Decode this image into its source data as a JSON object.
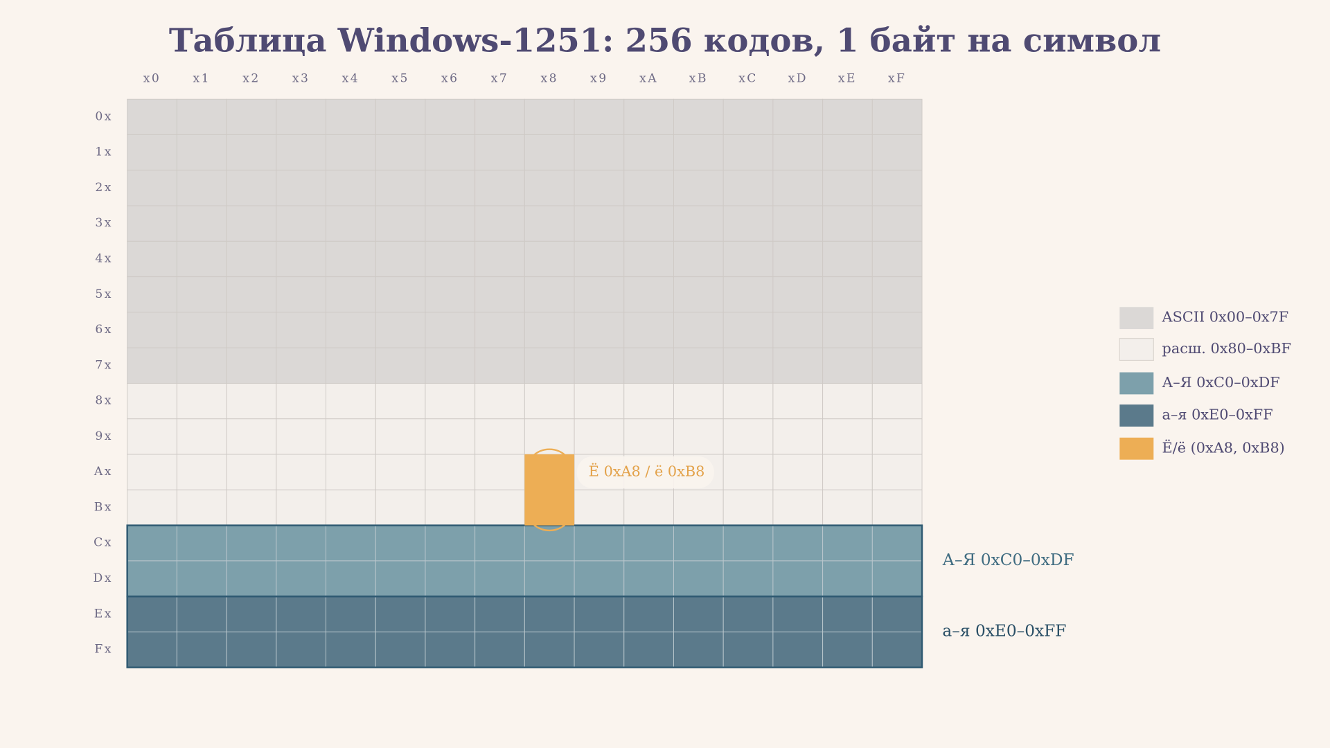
{
  "title": "Таблица Windows-1251: 256 кодов, 1 байт на символ",
  "columns": [
    "x0",
    "x1",
    "x2",
    "x3",
    "x4",
    "x5",
    "x6",
    "x7",
    "x8",
    "x9",
    "xA",
    "xB",
    "xC",
    "xD",
    "xE",
    "xF"
  ],
  "rows": [
    "0x",
    "1x",
    "2x",
    "3x",
    "4x",
    "5x",
    "6x",
    "7x",
    "8x",
    "9x",
    "Ax",
    "Bx",
    "Cx",
    "Dx",
    "Ex",
    "Fx"
  ],
  "legend": [
    {
      "label": "ASCII 0x00–0x7F",
      "color": "#dbd8d6"
    },
    {
      "label": "расш. 0x80–0xBF",
      "color": "#f3efeb"
    },
    {
      "label": "А–Я 0xC0–0xDF",
      "color": "#7da0ab"
    },
    {
      "label": "а–я 0xE0–0xFF",
      "color": "#5b7a8b"
    },
    {
      "label": "Ё/ё (0xA8, 0xB8)",
      "color": "#edae55"
    }
  ],
  "annotations": {
    "yo": "Ё 0xA8 / ё 0xB8",
    "upper": "А–Я  0xC0–0xDF",
    "lower": "а–я  0xE0–0xFF"
  }
}
